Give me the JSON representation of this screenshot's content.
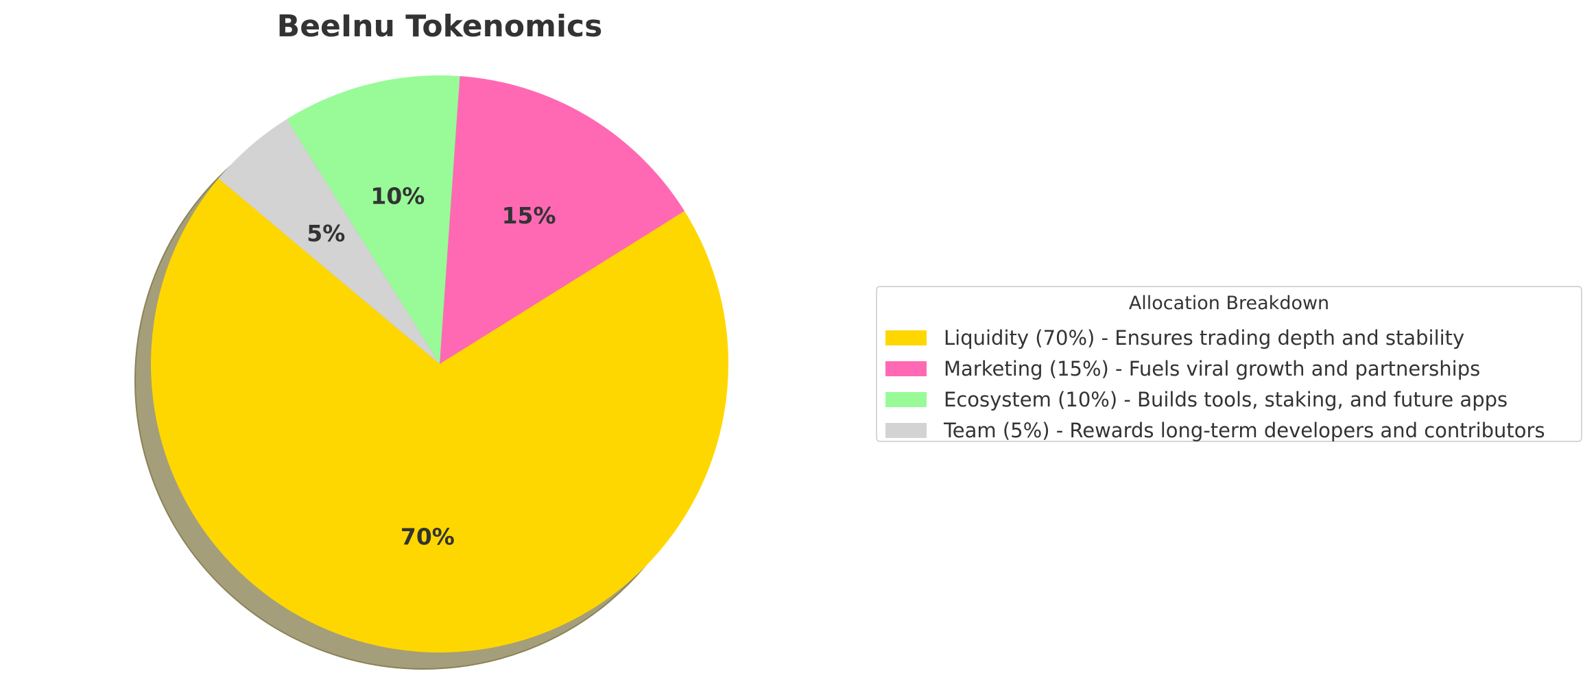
{
  "chart_data": {
    "type": "pie",
    "title": "BeeInu Tokenomics",
    "start_angle_deg": 140,
    "direction": "counterclockwise",
    "shadow": true,
    "slices": [
      {
        "label": "Liquidity",
        "value": 70,
        "pct_label": "70%",
        "color": "#FFD700"
      },
      {
        "label": "Marketing",
        "value": 15,
        "pct_label": "15%",
        "color": "#FF69B4"
      },
      {
        "label": "Ecosystem",
        "value": 10,
        "pct_label": "10%",
        "color": "#98FB98"
      },
      {
        "label": "Team",
        "value": 5,
        "pct_label": "5%",
        "color": "#D3D3D3"
      }
    ],
    "legend": {
      "title": "Allocation Breakdown",
      "placement": "right",
      "entries": [
        "Liquidity (70%) - Ensures trading depth and stability",
        "Marketing (15%) - Fuels viral growth and partnerships",
        "Ecosystem (10%) - Builds tools, staking, and future apps",
        "Team (5%) - Rewards long-term developers and contributors"
      ]
    }
  }
}
